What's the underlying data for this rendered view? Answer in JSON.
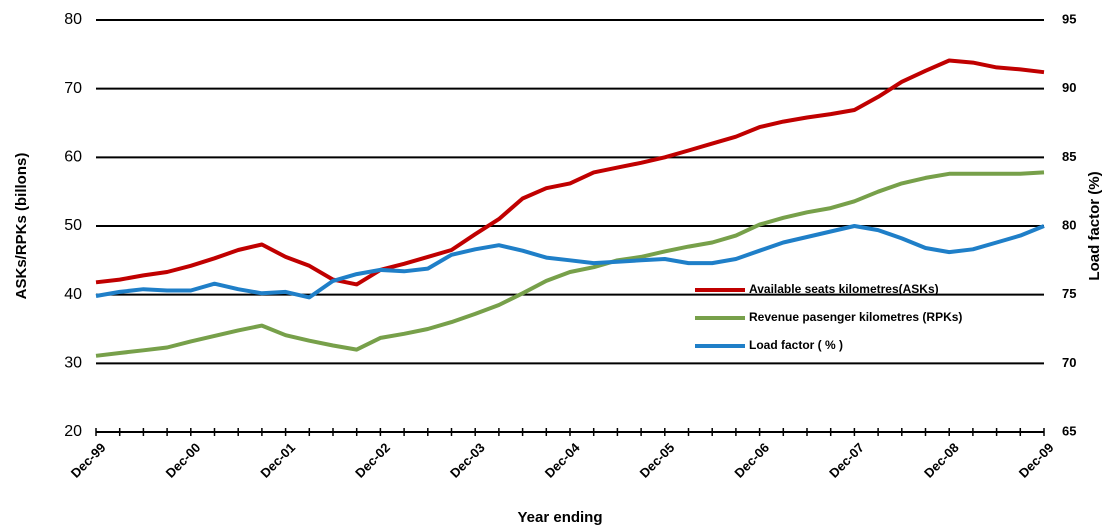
{
  "chart_data": {
    "type": "line",
    "x_label": "Year ending",
    "y_label": "ASKs/RPKs (billons)",
    "y2_label": "Load factor (%)",
    "categories": [
      "Dec-99",
      null,
      null,
      null,
      "Dec-00",
      null,
      null,
      null,
      "Dec-01",
      null,
      null,
      null,
      "Dec-02",
      null,
      null,
      null,
      "Dec-03",
      null,
      null,
      null,
      "Dec-04",
      null,
      null,
      null,
      "Dec-05",
      null,
      null,
      null,
      "Dec-06",
      null,
      null,
      null,
      "Dec-07",
      null,
      null,
      null,
      "Dec-08",
      null,
      null,
      null,
      "Dec-09"
    ],
    "series": [
      {
        "name": "Available seats  kilometres(ASKs)",
        "color": "#c00000",
        "values": [
          41.8,
          42.2,
          42.8,
          43.3,
          44.2,
          45.3,
          46.5,
          47.3,
          45.5,
          44.2,
          42.2,
          41.5,
          43.6,
          44.5,
          45.5,
          46.5,
          48.8,
          51,
          54,
          55.5,
          56.2,
          57.8,
          58.5,
          59.2,
          60,
          61,
          62,
          63,
          64.4,
          65.2,
          65.8,
          66.3,
          66.9,
          68.8,
          71,
          72.6,
          74.1,
          73.8,
          73.1,
          72.8,
          72.4
        ]
      },
      {
        "name": "Revenue pasenger kilometres  (RPKs)",
        "color": "#77a04a",
        "values": [
          31.1,
          31.5,
          31.9,
          32.3,
          33.2,
          34,
          34.8,
          35.5,
          34.1,
          33.3,
          32.6,
          32,
          33.7,
          34.3,
          35,
          36,
          37.2,
          38.5,
          40.2,
          42,
          43.3,
          44,
          45,
          45.5,
          46.3,
          47,
          47.6,
          48.6,
          50.2,
          51.2,
          52,
          52.6,
          53.6,
          55,
          56.2,
          57,
          57.6,
          57.6,
          57.6,
          57.6,
          57.8
        ]
      },
      {
        "name": "Load factor ( % )",
        "color": "#1f7fc8",
        "axis": "y2",
        "values": [
          74.9,
          75.2,
          75.4,
          75.3,
          75.3,
          75.8,
          75.4,
          75.1,
          75.2,
          74.8,
          76,
          76.5,
          76.8,
          76.7,
          76.9,
          77.9,
          78.3,
          78.6,
          78.2,
          77.7,
          77.5,
          77.3,
          77.4,
          77.5,
          77.6,
          77.3,
          77.3,
          77.6,
          78.2,
          78.8,
          79.2,
          79.6,
          80,
          79.7,
          79.1,
          78.4,
          78.1,
          78.3,
          78.8,
          79.3,
          80
        ]
      }
    ],
    "ylim": [
      20,
      80
    ],
    "yticks": [
      20,
      30,
      40,
      50,
      60,
      70,
      80
    ],
    "y2lim": [
      65,
      95
    ],
    "y2ticks": [
      65,
      70,
      75,
      80,
      85,
      90,
      95
    ],
    "grid": true,
    "legend_position": "lower right"
  }
}
